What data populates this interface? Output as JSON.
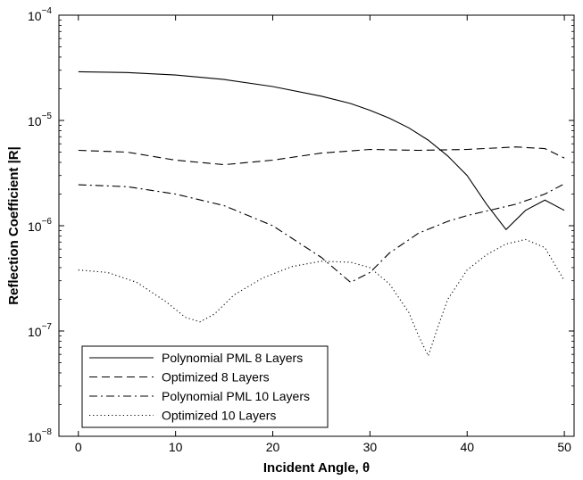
{
  "chart_data": {
    "type": "line",
    "title": "",
    "xlabel": "Incident Angle, θ",
    "ylabel": "Reflection Coefficient |R|",
    "xlim": [
      -2,
      51
    ],
    "ylim": [
      1e-08,
      0.0001
    ],
    "yscale": "log",
    "grid": false,
    "legend_position": "bottom-left",
    "x_ticks": [
      0,
      10,
      20,
      30,
      40,
      50
    ],
    "x_tick_labels": [
      "0",
      "10",
      "20",
      "30",
      "40",
      "50"
    ],
    "y_ticks": [
      1e-08,
      1e-07,
      1e-06,
      1e-05,
      0.0001
    ],
    "y_tick_base": [
      "10",
      "10",
      "10",
      "10",
      "10"
    ],
    "y_tick_exp": [
      "−8",
      "−7",
      "−6",
      "−5",
      "−4"
    ],
    "series": [
      {
        "name": "Polynomial PML 8 Layers",
        "style": "solid",
        "x": [
          0,
          5,
          10,
          15,
          20,
          25,
          28,
          30,
          32,
          34,
          36,
          38,
          40,
          42,
          44,
          46,
          48,
          50
        ],
        "y": [
          2.9e-05,
          2.85e-05,
          2.7e-05,
          2.45e-05,
          2.1e-05,
          1.7e-05,
          1.45e-05,
          1.25e-05,
          1.05e-05,
          8.5e-06,
          6.5e-06,
          4.6e-06,
          3e-06,
          1.6e-06,
          9.2e-07,
          1.4e-06,
          1.75e-06,
          1.4e-06
        ]
      },
      {
        "name": "Optimized 8 Layers",
        "style": "dashed",
        "x": [
          0,
          5,
          10,
          15,
          20,
          25,
          30,
          35,
          40,
          45,
          48,
          50
        ],
        "y": [
          5.2e-06,
          5e-06,
          4.2e-06,
          3.8e-06,
          4.2e-06,
          4.9e-06,
          5.3e-06,
          5.2e-06,
          5.3e-06,
          5.6e-06,
          5.4e-06,
          4.4e-06
        ]
      },
      {
        "name": "Polynomial PML 10 Layers",
        "style": "dashdot",
        "x": [
          0,
          5,
          10,
          15,
          20,
          25,
          28,
          30,
          32,
          35,
          38,
          40,
          45,
          48,
          50
        ],
        "y": [
          2.45e-06,
          2.35e-06,
          2e-06,
          1.55e-06,
          1e-06,
          5e-07,
          2.9e-07,
          3.6e-07,
          5.5e-07,
          8.5e-07,
          1.1e-06,
          1.25e-06,
          1.6e-06,
          2e-06,
          2.5e-06
        ]
      },
      {
        "name": "Optimized 10 Layers",
        "style": "dotted",
        "x": [
          0,
          3,
          6,
          9,
          11,
          12.5,
          14,
          16,
          19,
          22,
          25,
          28,
          30,
          32,
          34,
          35,
          36,
          37,
          38,
          40,
          42,
          44,
          46,
          48,
          50
        ],
        "y": [
          3.8e-07,
          3.6e-07,
          2.9e-07,
          1.9e-07,
          1.35e-07,
          1.22e-07,
          1.45e-07,
          2.2e-07,
          3.2e-07,
          4.1e-07,
          4.6e-07,
          4.5e-07,
          4e-07,
          2.8e-07,
          1.5e-07,
          9e-08,
          5.8e-08,
          1.1e-07,
          2e-07,
          3.8e-07,
          5.3e-07,
          6.7e-07,
          7.4e-07,
          6.2e-07,
          3e-07
        ]
      }
    ]
  }
}
